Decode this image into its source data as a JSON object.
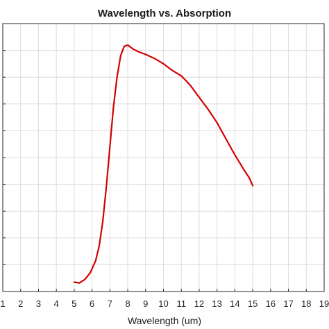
{
  "chart_data": {
    "type": "line",
    "title": "Wavelength vs. Absorption",
    "xlabel": "Wavelength (um)",
    "ylabel": "",
    "xlim": [
      1,
      19
    ],
    "ylim": [
      0,
      10
    ],
    "x_ticks": [
      "1",
      "2",
      "3",
      "4",
      "5",
      "5",
      "6",
      "7",
      "8",
      "9",
      "10",
      "11",
      "12",
      "13",
      "14",
      "15",
      "16",
      "17",
      "18",
      "19"
    ],
    "y_ticks_labeled": false,
    "grid": true,
    "series": [
      {
        "color": "#d40000",
        "points": [
          [
            5.0,
            0.35
          ],
          [
            5.3,
            0.32
          ],
          [
            5.6,
            0.45
          ],
          [
            5.9,
            0.7
          ],
          [
            6.2,
            1.15
          ],
          [
            6.4,
            1.7
          ],
          [
            6.6,
            2.6
          ],
          [
            6.8,
            3.9
          ],
          [
            7.0,
            5.4
          ],
          [
            7.2,
            6.9
          ],
          [
            7.4,
            8.0
          ],
          [
            7.6,
            8.8
          ],
          [
            7.8,
            9.15
          ],
          [
            8.0,
            9.2
          ],
          [
            8.3,
            9.05
          ],
          [
            8.6,
            8.95
          ],
          [
            9.0,
            8.85
          ],
          [
            9.5,
            8.7
          ],
          [
            10.0,
            8.5
          ],
          [
            10.5,
            8.25
          ],
          [
            11.0,
            8.05
          ],
          [
            11.5,
            7.7
          ],
          [
            12.0,
            7.25
          ],
          [
            12.5,
            6.8
          ],
          [
            13.0,
            6.3
          ],
          [
            13.5,
            5.7
          ],
          [
            14.0,
            5.1
          ],
          [
            14.5,
            4.55
          ],
          [
            14.8,
            4.25
          ],
          [
            15.0,
            3.95
          ]
        ]
      }
    ]
  }
}
